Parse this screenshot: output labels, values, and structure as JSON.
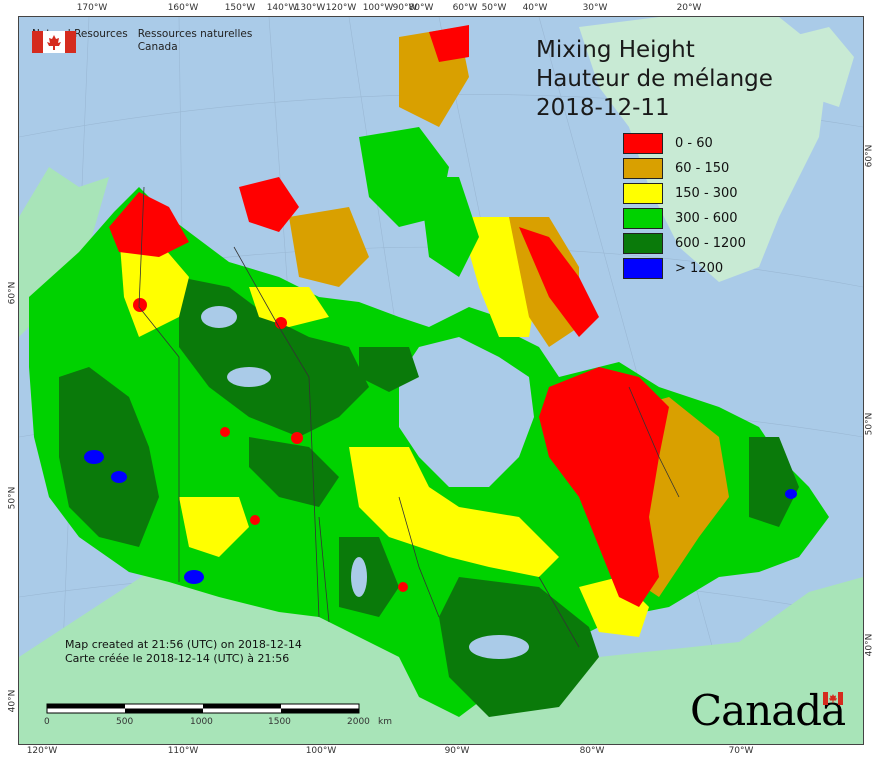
{
  "header": {
    "agency_en": [
      "Natural Resources",
      "Canada"
    ],
    "agency_fr": [
      "Ressources naturelles",
      "Canada"
    ],
    "title_lines": [
      "Mixing Height",
      "Hauteur de mélange",
      "2018-12-11"
    ]
  },
  "legend": {
    "items": [
      {
        "label": "0 - 60",
        "color": "#ff0000"
      },
      {
        "label": "60 - 150",
        "color": "#d9a000"
      },
      {
        "label": "150 - 300",
        "color": "#ffff00"
      },
      {
        "label": "300 - 600",
        "color": "#00d200"
      },
      {
        "label": "600 - 1200",
        "color": "#0a7a0a"
      },
      {
        "label": "> 1200",
        "color": "#0000ff"
      }
    ]
  },
  "axes": {
    "top": [
      "170°W",
      "160°W",
      "150°W",
      "140°W",
      "130°W",
      "120°W",
      "100°W",
      "90°W",
      "80°W",
      "60°W",
      "50°W",
      "40°W",
      "30°W",
      "20°W"
    ],
    "bottom": [
      "120°W",
      "110°W",
      "100°W",
      "90°W",
      "80°W",
      "70°W"
    ],
    "left": [
      "60°N",
      "50°N",
      "40°N"
    ],
    "right": [
      "60°N",
      "50°N",
      "40°N"
    ]
  },
  "footer": {
    "credit_lines": [
      "Map created at 21:56 (UTC) on 2018-12-14",
      "Carte créée le 2018-12-14 (UTC) à 21:56"
    ],
    "scale_ticks": [
      "0",
      "500",
      "1000",
      "1500",
      "2000"
    ],
    "scale_unit": "km",
    "wordmark": "Canada"
  },
  "colors": {
    "ocean": "#aacbe8",
    "land_outside": "#a8e4b8",
    "ice": "#c8ead4"
  }
}
